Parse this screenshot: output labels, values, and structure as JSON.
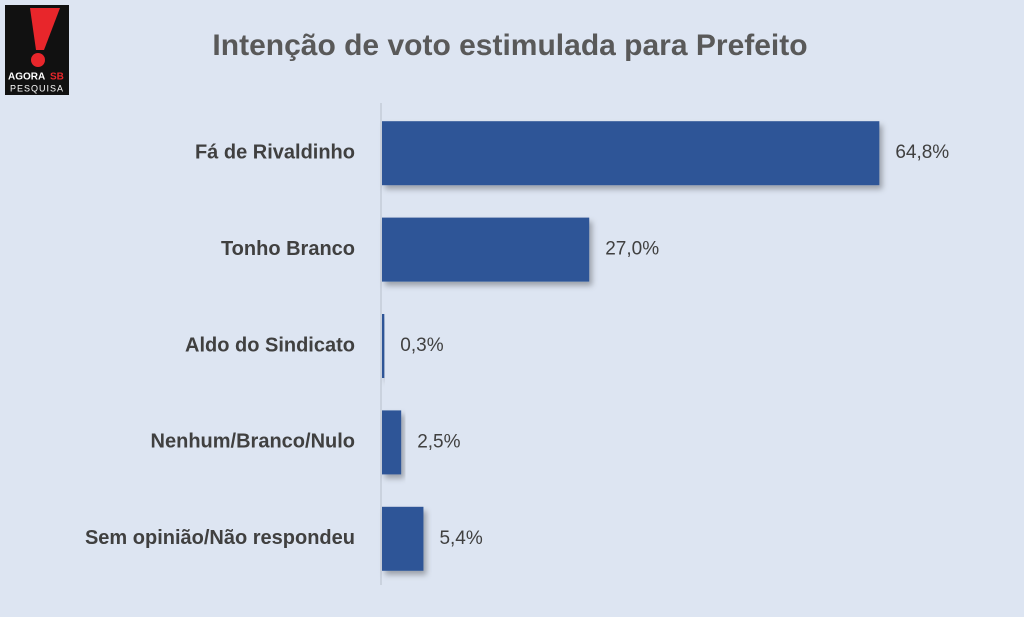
{
  "logo": {
    "brand": "AGORA",
    "brand_accent": "SB",
    "tagline": "PESQUISA"
  },
  "chart_data": {
    "type": "bar",
    "orientation": "horizontal",
    "title": "Intenção de voto estimulada para Prefeito",
    "categories": [
      "Fá de Rivaldinho",
      "Tonho Branco",
      "Aldo do Sindicato",
      "Nenhum/Branco/Nulo",
      "Sem opinião/Não respondeu"
    ],
    "values": [
      64.8,
      27.0,
      0.3,
      2.5,
      5.4
    ],
    "value_labels": [
      "64,8%",
      "27,0%",
      "0,3%",
      "2,5%",
      "5,4%"
    ],
    "color": "#2f5597",
    "xlim": [
      0,
      80
    ]
  }
}
